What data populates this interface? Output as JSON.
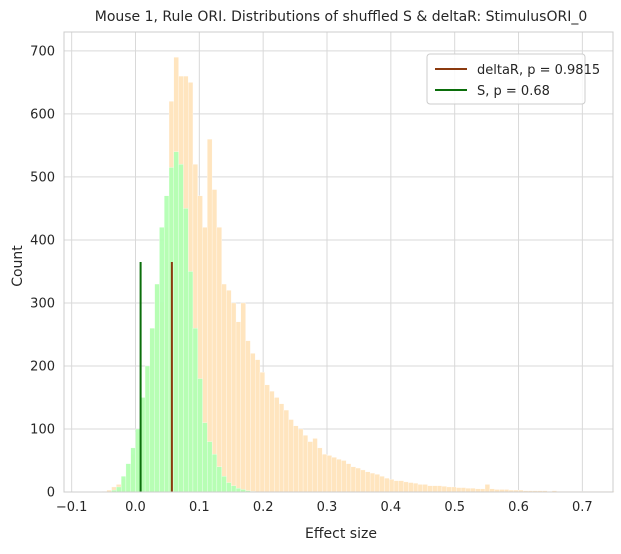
{
  "chart_data": {
    "type": "bar",
    "title": "Mouse 1, Rule ORI. Distributions of shuffled S & deltaR: StimulusORI_0",
    "xlabel": "Effect size",
    "ylabel": "Count",
    "xlim": [
      -0.112,
      0.748
    ],
    "ylim": [
      0,
      730
    ],
    "xticks": [
      -0.1,
      0.0,
      0.1,
      0.2,
      0.3,
      0.4,
      0.5,
      0.6,
      0.7
    ],
    "xtick_labels": [
      "−0.1",
      "0.0",
      "0.1",
      "0.2",
      "0.3",
      "0.4",
      "0.5",
      "0.6",
      "0.7"
    ],
    "yticks": [
      0,
      100,
      200,
      300,
      400,
      500,
      600,
      700
    ],
    "ytick_labels": [
      "0",
      "100",
      "200",
      "300",
      "400",
      "500",
      "600",
      "700"
    ],
    "grid": true,
    "legend_placement": "upper right",
    "bin_width": 0.0075,
    "histograms": [
      {
        "name": "deltaR shuffled",
        "color": "#ffe5bf",
        "x_start": -0.0525,
        "counts": [
          1,
          3,
          8,
          12,
          20,
          35,
          60,
          95,
          150,
          200,
          260,
          330,
          300,
          420,
          620,
          690,
          660,
          660,
          650,
          520,
          470,
          420,
          560,
          480,
          420,
          330,
          320,
          300,
          270,
          300,
          240,
          220,
          210,
          190,
          170,
          160,
          150,
          140,
          130,
          115,
          105,
          100,
          90,
          80,
          85,
          70,
          60,
          58,
          55,
          52,
          50,
          45,
          40,
          38,
          35,
          32,
          30,
          28,
          25,
          22,
          20,
          18,
          18,
          16,
          15,
          14,
          12,
          12,
          10,
          10,
          10,
          9,
          8,
          8,
          7,
          7,
          6,
          6,
          5,
          5,
          12,
          5,
          4,
          4,
          4,
          3,
          3,
          3,
          2,
          2,
          2,
          2,
          2,
          1,
          2,
          1,
          1,
          1,
          1,
          1,
          1,
          1,
          1,
          1,
          1,
          1,
          1
        ]
      },
      {
        "name": "S shuffled",
        "color": "#b3ffb3",
        "x_start": -0.0375,
        "counts": [
          3,
          8,
          25,
          45,
          70,
          100,
          150,
          200,
          260,
          330,
          420,
          470,
          515,
          540,
          520,
          450,
          350,
          260,
          180,
          110,
          80,
          60,
          40,
          25,
          15,
          10,
          6,
          4,
          2,
          1
        ]
      }
    ],
    "lines": [
      {
        "name": "deltaR, p = 0.9815",
        "x": 0.057,
        "y_max": 365,
        "color": "#8b3a0f"
      },
      {
        "name": "S, p = 0.68",
        "x": 0.008,
        "y_max": 365,
        "color": "#0b6e0b"
      }
    ]
  }
}
